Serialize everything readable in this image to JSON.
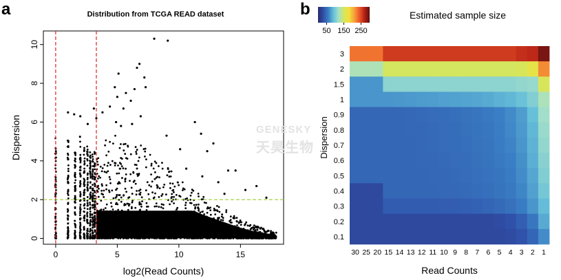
{
  "panel_a": {
    "letter": "a",
    "chart_data": {
      "type": "scatter",
      "title": "Distribution from TCGA READ dataset",
      "xlabel": "log2(Read Counts)",
      "ylabel": "Dispersion",
      "xlim": [
        -1,
        18.5
      ],
      "ylim": [
        -0.3,
        10.7
      ],
      "xticks": [
        "0",
        "5",
        "10",
        "15"
      ],
      "xtick_values": [
        0,
        5,
        10,
        15
      ],
      "yticks": [
        "0",
        "2",
        "4",
        "6",
        "8",
        "10"
      ],
      "ytick_values": [
        0,
        2,
        4,
        6,
        8,
        10
      ],
      "reference_lines": [
        {
          "axis": "x",
          "value": 0,
          "color": "#e02020",
          "style": "dashed"
        },
        {
          "axis": "x",
          "value": 3.3,
          "color": "#e02020",
          "style": "dashed"
        },
        {
          "axis": "y",
          "value": 2,
          "color": "#9acd32",
          "style": "dashed"
        }
      ],
      "points": [
        [
          8.0,
          10.3
        ],
        [
          9.1,
          10.2
        ],
        [
          6.8,
          9.0
        ],
        [
          5.1,
          8.5
        ],
        [
          6.6,
          8.8
        ],
        [
          7.2,
          8.3
        ],
        [
          4.8,
          7.8
        ],
        [
          5.7,
          7.5
        ],
        [
          6.4,
          7.7
        ],
        [
          7.3,
          7.8
        ],
        [
          5.0,
          7.3
        ],
        [
          6.1,
          7.1
        ],
        [
          5.5,
          6.7
        ],
        [
          4.4,
          6.8
        ],
        [
          6.9,
          6.3
        ],
        [
          11.3,
          6.0
        ],
        [
          11.8,
          5.4
        ],
        [
          5.3,
          5.8
        ],
        [
          6.2,
          5.9
        ],
        [
          4.9,
          6.0
        ],
        [
          1.0,
          6.5
        ],
        [
          1.5,
          6.4
        ],
        [
          2.0,
          6.3
        ],
        [
          2.6,
          5.9
        ],
        [
          3.3,
          6.2
        ],
        [
          3.1,
          6.7
        ],
        [
          3.8,
          6.5
        ],
        [
          9.0,
          5.3
        ],
        [
          10.1,
          4.6
        ],
        [
          12.3,
          4.5
        ],
        [
          12.8,
          4.9
        ],
        [
          14.0,
          3.5
        ],
        [
          14.6,
          3.5
        ],
        [
          15.4,
          2.5
        ],
        [
          17.1,
          2.1
        ],
        [
          16.3,
          2.7
        ],
        [
          13.2,
          2.9
        ],
        [
          11.9,
          3.2
        ],
        [
          10.6,
          3.6
        ],
        [
          13.7,
          2.3
        ]
      ],
      "columns": [
        {
          "x": 0.0,
          "top": 5.2
        },
        {
          "x": 1.0,
          "top": 5.1
        },
        {
          "x": 1.58,
          "top": 4.8
        },
        {
          "x": 2.0,
          "top": 5.3
        },
        {
          "x": 2.32,
          "top": 4.7
        },
        {
          "x": 2.58,
          "top": 5.0
        },
        {
          "x": 2.81,
          "top": 4.6
        },
        {
          "x": 3.0,
          "top": 4.4
        },
        {
          "x": 3.17,
          "top": 4.6
        }
      ],
      "cloud_top": [
        [
          3.3,
          4.4
        ],
        [
          4.0,
          5.1
        ],
        [
          5.0,
          5.4
        ],
        [
          6.0,
          5.2
        ],
        [
          7.0,
          4.8
        ],
        [
          8.0,
          4.3
        ],
        [
          9.0,
          3.8
        ],
        [
          10.0,
          3.1
        ],
        [
          11.0,
          2.7
        ],
        [
          12.0,
          2.2
        ],
        [
          13.0,
          1.8
        ],
        [
          14.0,
          1.4
        ],
        [
          15.0,
          1.0
        ],
        [
          16.0,
          0.7
        ],
        [
          17.0,
          0.5
        ],
        [
          17.9,
          0.3
        ]
      ]
    }
  },
  "panel_b": {
    "letter": "b",
    "chart_data": {
      "type": "heatmap",
      "title": "Estimated sample size",
      "xlabel": "Read Counts",
      "ylabel": "Dispersion",
      "x_categories": [
        "30",
        "25",
        "20",
        "15",
        "14",
        "13",
        "12",
        "11",
        "10",
        "9",
        "8",
        "7",
        "6",
        "5",
        "4",
        "3",
        "2",
        "1"
      ],
      "y_categories": [
        "3",
        "2",
        "1.5",
        "1",
        "0.9",
        "0.8",
        "0.7",
        "0.6",
        "0.5",
        "0.4",
        "0.3",
        "0.2",
        "0.1"
      ],
      "colorbar": {
        "ticks": [
          "50",
          "150",
          "250"
        ],
        "tick_values": [
          50,
          150,
          250
        ],
        "range": [
          0,
          300
        ],
        "stops": [
          "#2a2b6b",
          "#2f4fa8",
          "#3a7fc5",
          "#67c0d9",
          "#a6e0c8",
          "#d3e660",
          "#f3e13a",
          "#f6a23a",
          "#ec5a2a",
          "#b62015",
          "#5a1010"
        ]
      },
      "values": [
        [
          229,
          229,
          229,
          256,
          256,
          256,
          256,
          256,
          256,
          256,
          256,
          256,
          256,
          256,
          256,
          262,
          266,
          290
        ],
        [
          125,
          125,
          125,
          151,
          151,
          151,
          151,
          151,
          151,
          151,
          151,
          151,
          151,
          151,
          151,
          154,
          168,
          219
        ],
        [
          70,
          70,
          70,
          108,
          108,
          108,
          108,
          108,
          108,
          108,
          108,
          108,
          108,
          108,
          108,
          111,
          113,
          154
        ],
        [
          70,
          70,
          70,
          70,
          71,
          72,
          73,
          74,
          75,
          76,
          77,
          78,
          80,
          83,
          86,
          92,
          103,
          124
        ],
        [
          45,
          45,
          45,
          45,
          45,
          46,
          47,
          48,
          49,
          50,
          52,
          54,
          56,
          60,
          65,
          74,
          90,
          118
        ],
        [
          45,
          45,
          45,
          45,
          45,
          46,
          46,
          47,
          48,
          49,
          51,
          53,
          55,
          59,
          64,
          72,
          86,
          114
        ],
        [
          45,
          45,
          45,
          45,
          45,
          45,
          46,
          47,
          48,
          49,
          50,
          52,
          54,
          58,
          62,
          70,
          84,
          111
        ],
        [
          45,
          45,
          45,
          45,
          45,
          45,
          46,
          46,
          47,
          48,
          49,
          51,
          53,
          56,
          60,
          68,
          82,
          106
        ],
        [
          45,
          45,
          45,
          45,
          45,
          45,
          45,
          46,
          46,
          47,
          48,
          50,
          52,
          54,
          58,
          66,
          78,
          102
        ],
        [
          25,
          25,
          25,
          45,
          45,
          45,
          45,
          45,
          46,
          46,
          47,
          49,
          50,
          53,
          56,
          63,
          75,
          97
        ],
        [
          25,
          25,
          25,
          38,
          38,
          38,
          38,
          38,
          39,
          39,
          40,
          42,
          44,
          47,
          51,
          58,
          70,
          88
        ],
        [
          25,
          25,
          25,
          25,
          25,
          25,
          25,
          25,
          25,
          25,
          25,
          25,
          25,
          27,
          31,
          40,
          55,
          80
        ],
        [
          25,
          25,
          25,
          25,
          25,
          25,
          25,
          25,
          25,
          25,
          25,
          25,
          25,
          25,
          27,
          32,
          44,
          66
        ]
      ]
    }
  },
  "watermark": {
    "line1": "GENESKY",
    "line2": "天昊生物"
  }
}
